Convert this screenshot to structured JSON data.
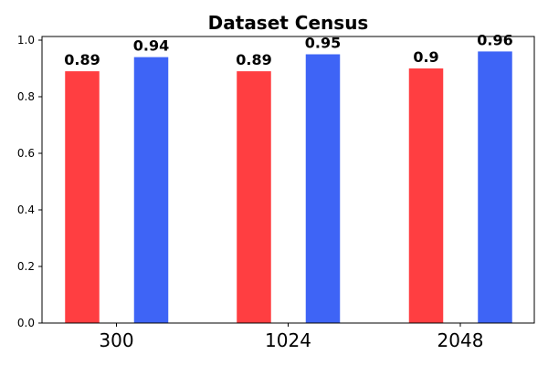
{
  "chart_data": {
    "type": "bar",
    "title": "Dataset Census",
    "categories": [
      "300",
      "1024",
      "2048"
    ],
    "series": [
      {
        "values": [
          0.89,
          0.89,
          0.9
        ],
        "color": "#ff3e41"
      },
      {
        "values": [
          0.94,
          0.95,
          0.96
        ],
        "color": "#3e64f6"
      }
    ],
    "data_labels": [
      [
        "0.89",
        "0.89",
        "0.9"
      ],
      [
        "0.94",
        "0.95",
        "0.96"
      ]
    ],
    "ylim": [
      0,
      1.0
    ],
    "yticks": [
      "0.0",
      "0.2",
      "0.4",
      "0.6",
      "0.8",
      "1.0"
    ],
    "xlabel": "",
    "ylabel": "",
    "grid": false,
    "legend": false
  }
}
